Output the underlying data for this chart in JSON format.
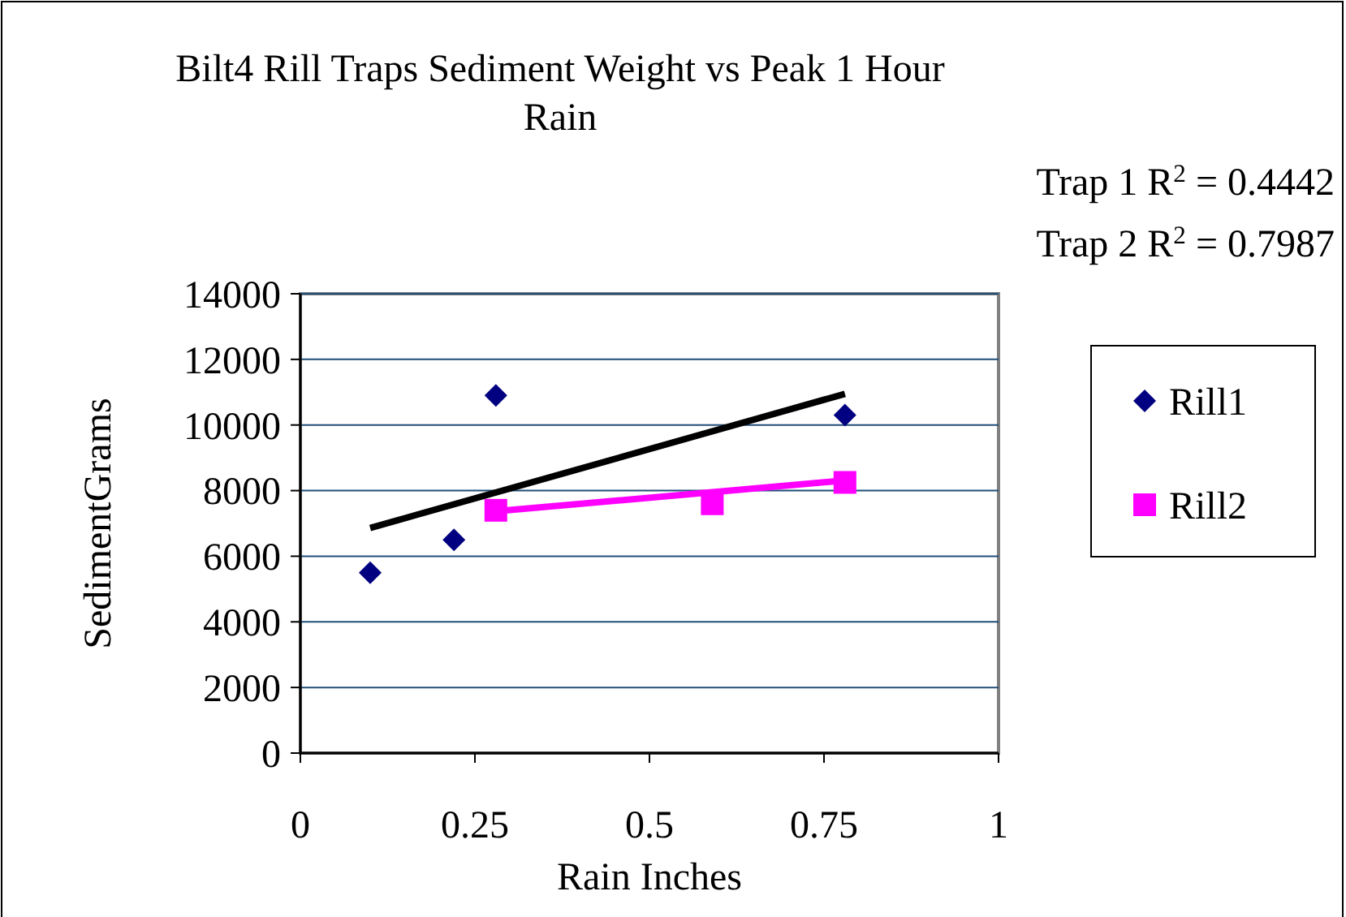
{
  "chart_data": {
    "type": "scatter",
    "title": "Bilt4 Rill Traps Sediment Weight vs Peak 1 Hour Rain",
    "xlabel": "Rain Inches",
    "ylabel": "SedimentGrams",
    "annotations": [
      "Trap 1  R$^{2}$ = 0.4442",
      "Trap 2  R$^{2}$ = 0.7987"
    ],
    "series": [
      {
        "name": "Rill1",
        "color": "#000080",
        "marker": "diamond",
        "x": [
          0.1,
          0.22,
          0.28,
          0.78
        ],
        "values": [
          5500,
          6500,
          10900,
          10300
        ]
      },
      {
        "name": "Rill2",
        "color": "#ff00ff",
        "marker": "square",
        "x": [
          0.28,
          0.59,
          0.78
        ],
        "values": [
          7400,
          7600,
          8250
        ]
      },
      {
        "type": "line",
        "color": "#000000",
        "marker": "none",
        "x": [
          0.1,
          0.78
        ],
        "values": [
          6860,
          10950
        ]
      },
      {
        "type": "line",
        "color": "#ff00ff",
        "marker": "none",
        "x": [
          0.28,
          0.78
        ],
        "values": [
          7370,
          8310
        ]
      }
    ],
    "xlim": [
      0,
      1
    ],
    "xticks": [
      0,
      0.25,
      0.5,
      0.75,
      1
    ],
    "ylim": [
      0,
      14000
    ],
    "yticks": [
      0,
      2000,
      4000,
      6000,
      8000,
      10000,
      12000,
      14000
    ],
    "grid": "y",
    "legend": "right"
  }
}
